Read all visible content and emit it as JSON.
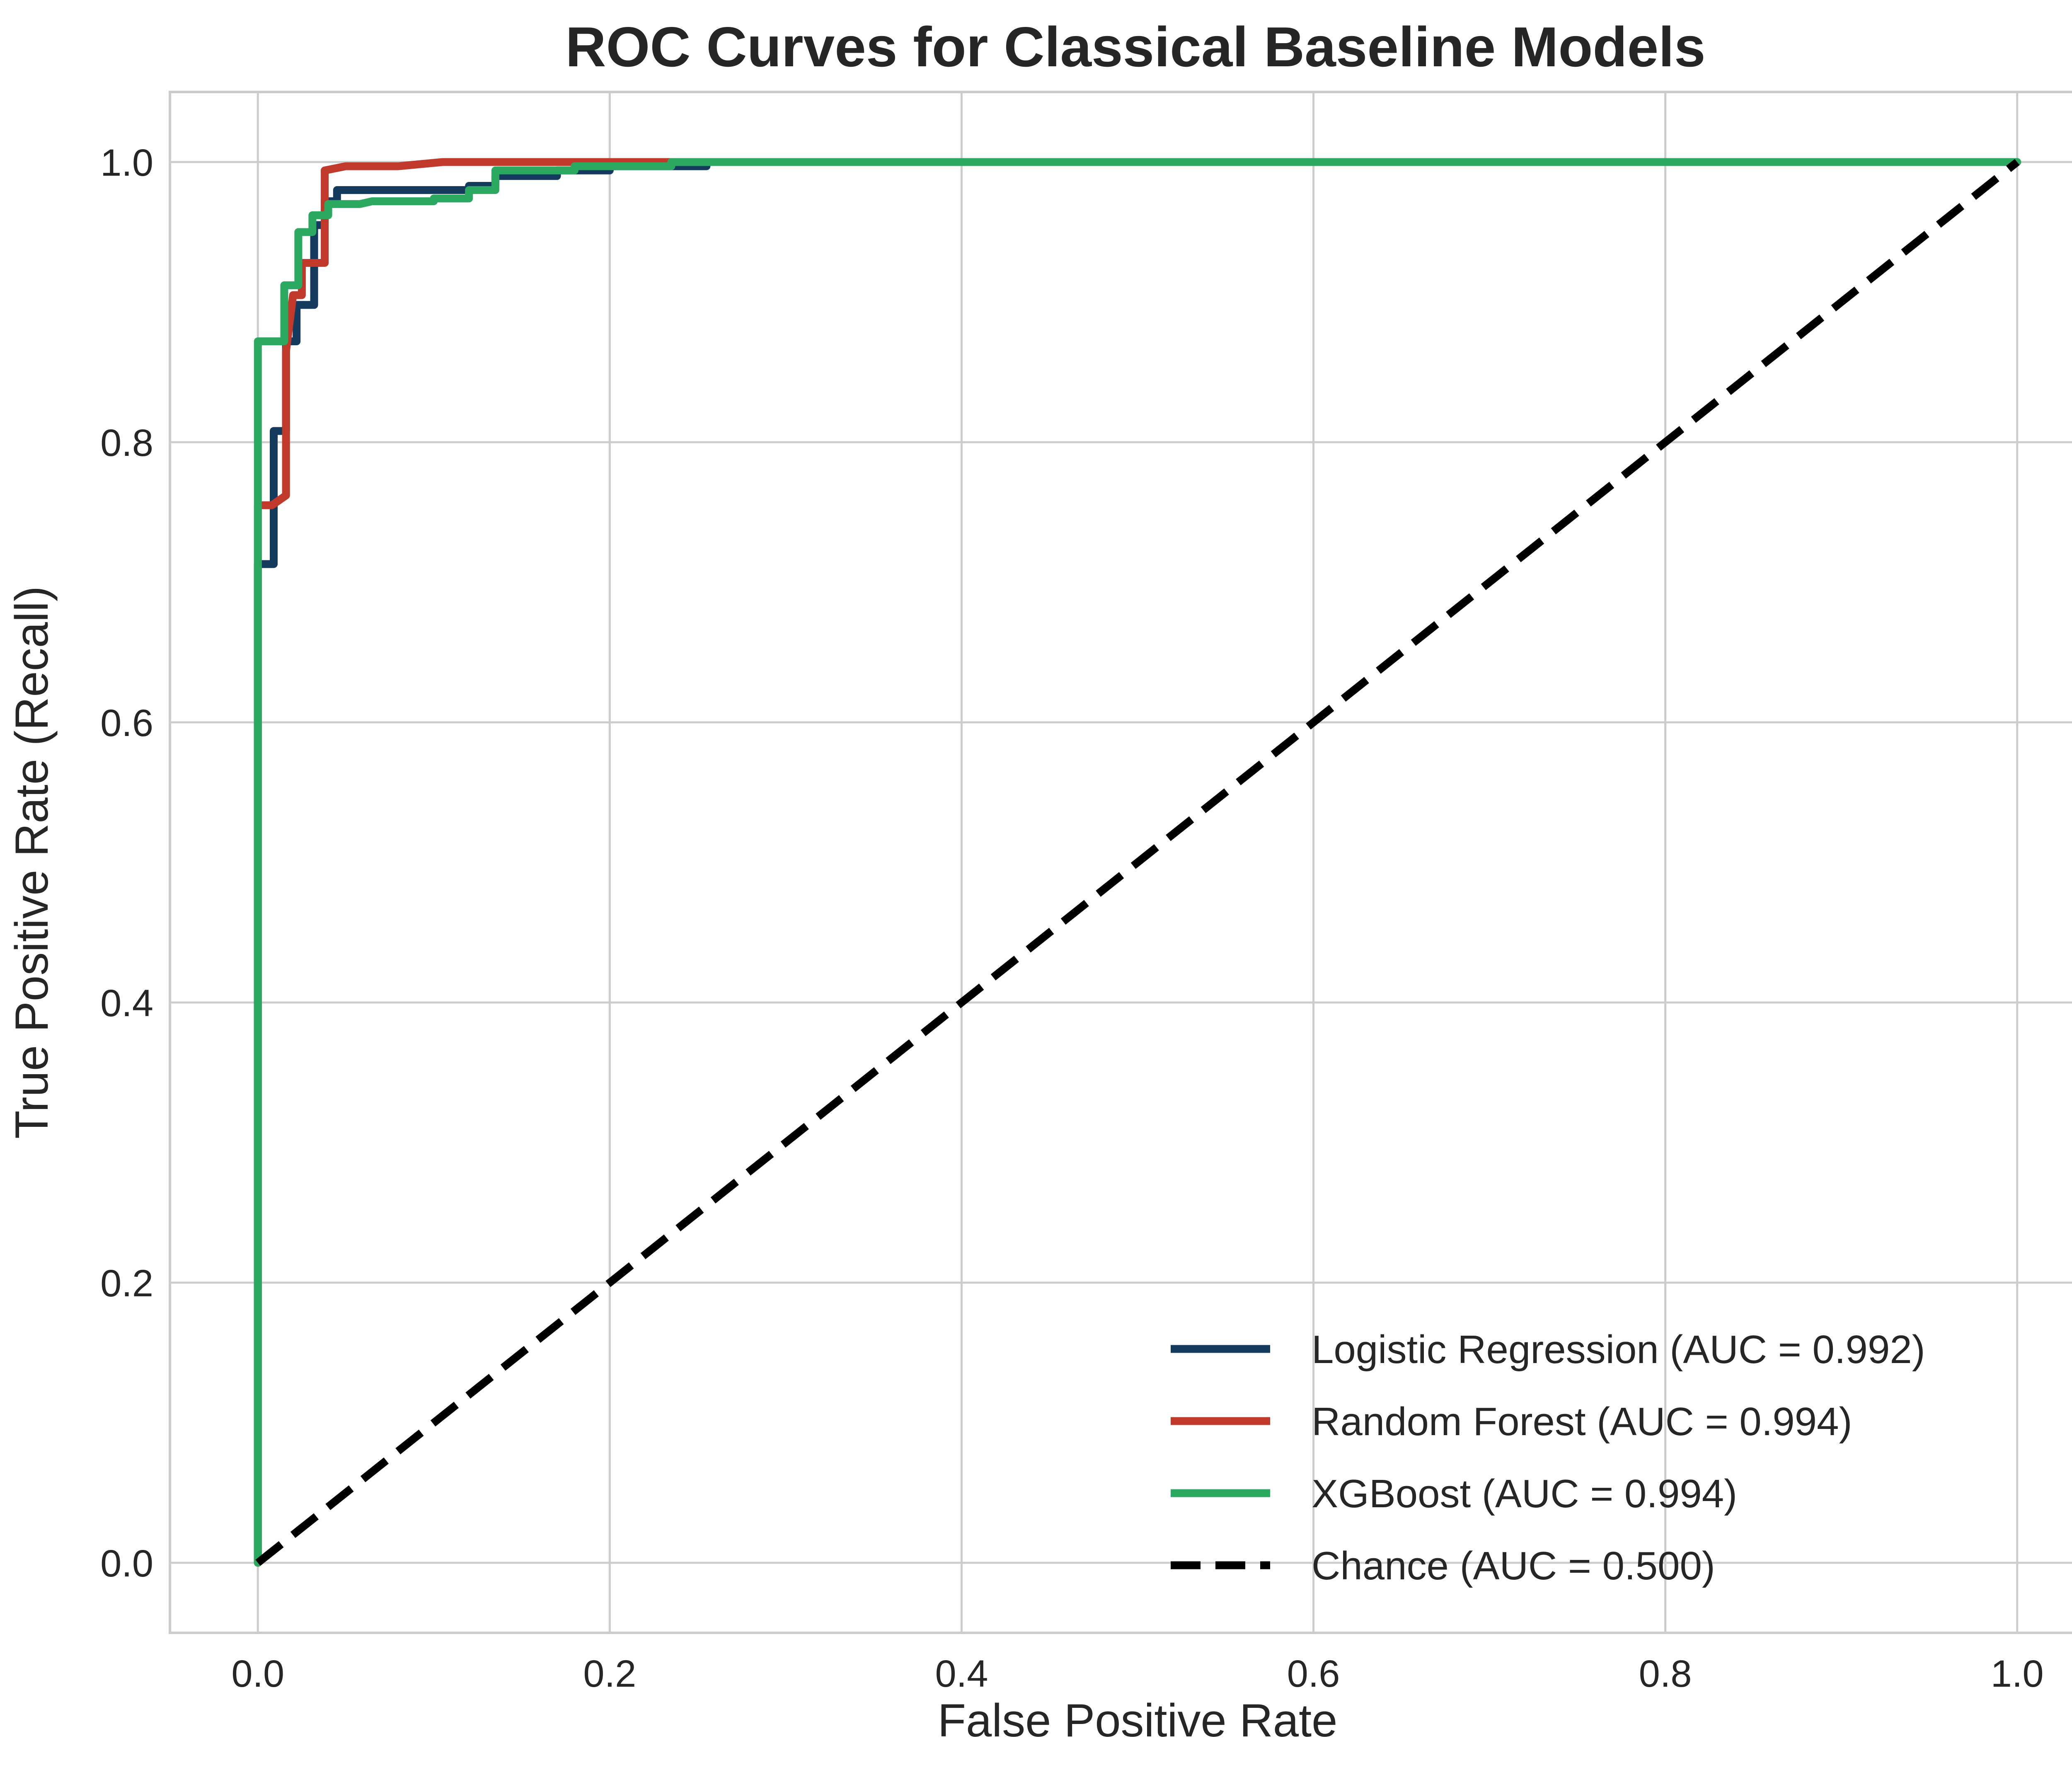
{
  "chart_data": {
    "type": "line",
    "title": "ROC Curves for Classical Baseline Models",
    "xlabel": "False Positive Rate",
    "ylabel": "True Positive Rate (Recall)",
    "xlim": [
      -0.05,
      1.05
    ],
    "ylim": [
      -0.05,
      1.05
    ],
    "xticks": [
      0.0,
      0.2,
      0.4,
      0.6,
      0.8,
      1.0
    ],
    "yticks": [
      0.0,
      0.2,
      0.4,
      0.6,
      0.8,
      1.0
    ],
    "tick_labels_x": [
      "0.0",
      "0.2",
      "0.4",
      "0.6",
      "0.8",
      "1.0"
    ],
    "tick_labels_y": [
      "0.0",
      "0.2",
      "0.4",
      "0.6",
      "0.8",
      "1.0"
    ],
    "grid": true,
    "legend_position": "lower-right",
    "series": [
      {
        "name": "Logistic Regression (AUC = 0.992)",
        "color": "#143a5e",
        "style": "solid",
        "x": [
          0.0,
          0.0,
          0.0,
          0.009,
          0.009,
          0.016,
          0.016,
          0.022,
          0.022,
          0.032,
          0.032,
          0.038,
          0.038,
          0.045,
          0.045,
          0.12,
          0.12,
          0.135,
          0.135,
          0.17,
          0.17,
          0.2,
          0.2,
          0.255,
          0.255,
          1.0
        ],
        "y": [
          0.0,
          0.71,
          0.713,
          0.713,
          0.808,
          0.808,
          0.872,
          0.872,
          0.898,
          0.898,
          0.955,
          0.955,
          0.972,
          0.972,
          0.98,
          0.98,
          0.983,
          0.983,
          0.99,
          0.99,
          0.994,
          0.994,
          0.997,
          0.997,
          1.0,
          1.0
        ]
      },
      {
        "name": "Random Forest (AUC = 0.994)",
        "color": "#c0392b",
        "style": "solid",
        "x": [
          0.0,
          0.0,
          0.0,
          0.008,
          0.016,
          0.016,
          0.02,
          0.025,
          0.025,
          0.038,
          0.038,
          0.05,
          0.08,
          0.105,
          0.25
        ],
        "y": [
          0.0,
          0.72,
          0.755,
          0.755,
          0.762,
          0.865,
          0.905,
          0.905,
          0.928,
          0.928,
          0.994,
          0.997,
          0.997,
          1.0,
          1.0
        ]
      },
      {
        "name": "XGBoost (AUC = 0.994)",
        "color": "#2ca961",
        "style": "solid",
        "x": [
          0.0,
          0.0,
          0.015,
          0.015,
          0.023,
          0.023,
          0.031,
          0.031,
          0.04,
          0.04,
          0.058,
          0.065,
          0.1,
          0.1,
          0.12,
          0.12,
          0.135,
          0.135,
          0.18,
          0.18,
          0.235,
          0.235,
          1.0
        ],
        "y": [
          0.0,
          0.872,
          0.872,
          0.912,
          0.912,
          0.95,
          0.95,
          0.962,
          0.962,
          0.97,
          0.97,
          0.972,
          0.972,
          0.974,
          0.974,
          0.98,
          0.98,
          0.994,
          0.994,
          0.997,
          0.997,
          1.0,
          1.0
        ]
      },
      {
        "name": "Chance (AUC = 0.500)",
        "color": "#000000",
        "style": "dashed",
        "x": [
          0.0,
          1.0
        ],
        "y": [
          0.0,
          1.0
        ]
      }
    ]
  }
}
